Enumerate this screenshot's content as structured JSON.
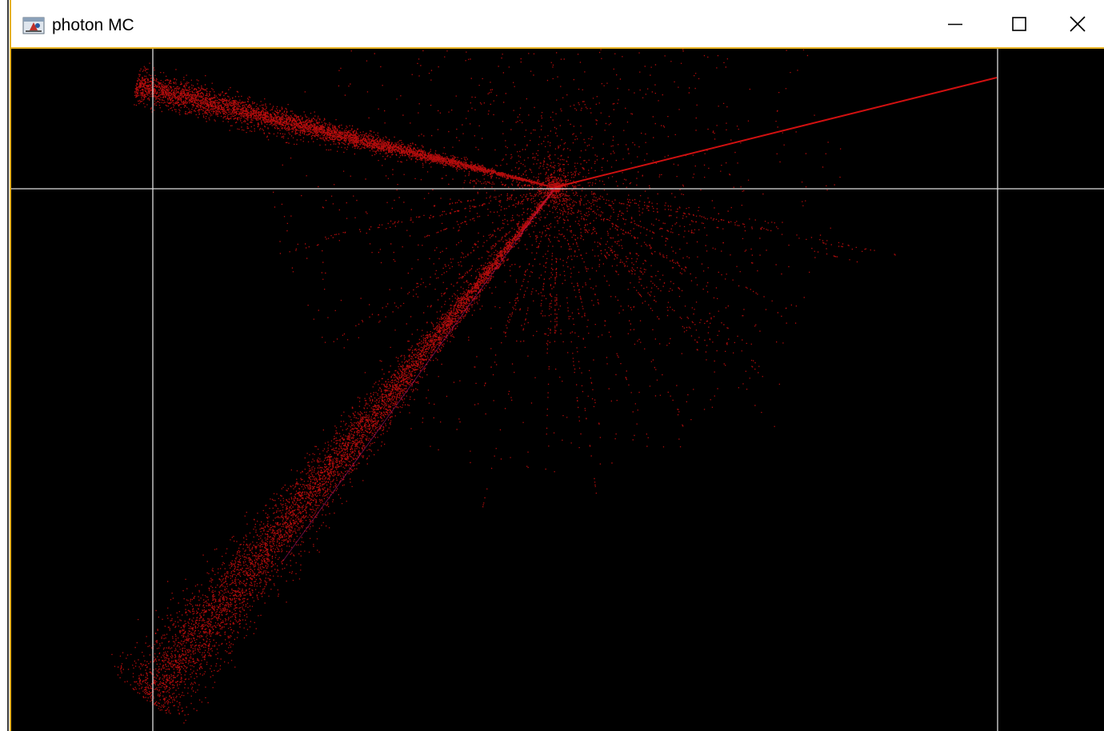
{
  "window": {
    "title": "photon MC",
    "icon": "java-app-icon",
    "controls": {
      "minimize_icon": "minimize-icon",
      "maximize_icon": "maximize-icon",
      "close_icon": "close-icon"
    }
  },
  "canvas": {
    "background": "#000000",
    "grid_color": "#dcdcdc",
    "photon_color": "#b40c0c",
    "beam_color": "#d01010",
    "frame_accent": "#e8b324"
  }
}
